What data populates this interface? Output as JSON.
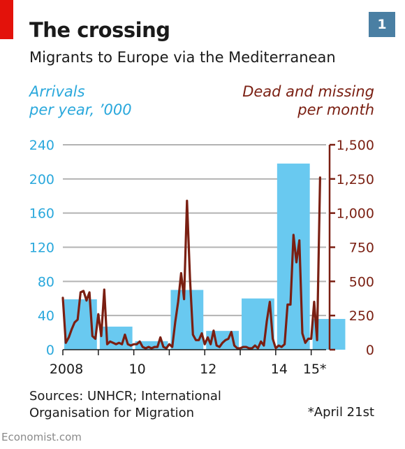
{
  "header": {
    "title": "The crossing",
    "subtitle": "Migrants to Europe via the Mediterranean",
    "chart_number": "1"
  },
  "axis_titles": {
    "left": [
      "Arrivals",
      "per year, ’000"
    ],
    "right": [
      "Dead and missing",
      "per month"
    ]
  },
  "colors": {
    "bars": "#69c9f0",
    "line": "#7a1f12",
    "left_axis": "#2aa8dc",
    "right_axis": "#7a1f12",
    "grid": "#b3b3b3",
    "brand_red": "#e3120b",
    "badge": "#4a7fa3"
  },
  "source": [
    "Sources: UNHCR; International",
    "Organisation for Migration"
  ],
  "footnote": "*April 21st",
  "brand": "Economist.com",
  "chart_data": {
    "type": "bar+line",
    "x_tick_labels": [
      "2008",
      "10",
      "12",
      "14",
      "15*"
    ],
    "x_tick_years": [
      2008,
      2010,
      2012,
      2014,
      2015
    ],
    "left_axis": {
      "ylim": [
        0,
        240
      ],
      "ticks": [
        "0",
        "40",
        "80",
        "120",
        "160",
        "200",
        "240"
      ],
      "tick_values": [
        0,
        40,
        80,
        120,
        160,
        200,
        240
      ]
    },
    "right_axis": {
      "ylim": [
        0,
        1500
      ],
      "ticks": [
        "0",
        "250",
        "500",
        "750",
        "1,000",
        "1,250",
        "1,500"
      ],
      "tick_values": [
        0,
        250,
        500,
        750,
        1000,
        1250,
        1500
      ]
    },
    "bars": {
      "axis": "left",
      "categories": [
        "2008",
        "2009",
        "2010",
        "2011",
        "2012",
        "2013",
        "2014",
        "2015"
      ],
      "values": [
        59,
        27,
        10,
        70,
        22,
        60,
        218,
        36
      ]
    },
    "line": {
      "axis": "right",
      "start": "2008-01",
      "end": "2015-04",
      "values": [
        380,
        50,
        90,
        150,
        200,
        220,
        420,
        430,
        360,
        420,
        100,
        80,
        260,
        100,
        440,
        40,
        60,
        50,
        40,
        50,
        40,
        110,
        40,
        30,
        40,
        40,
        60,
        20,
        10,
        20,
        10,
        20,
        20,
        90,
        20,
        10,
        40,
        20,
        200,
        350,
        560,
        370,
        1090,
        520,
        110,
        70,
        70,
        120,
        40,
        90,
        40,
        140,
        30,
        20,
        50,
        70,
        80,
        130,
        30,
        10,
        10,
        20,
        20,
        10,
        10,
        30,
        10,
        60,
        30,
        210,
        350,
        80,
        10,
        30,
        20,
        40,
        330,
        330,
        840,
        640,
        800,
        120,
        50,
        80,
        80,
        350,
        70,
        1260
      ]
    }
  }
}
